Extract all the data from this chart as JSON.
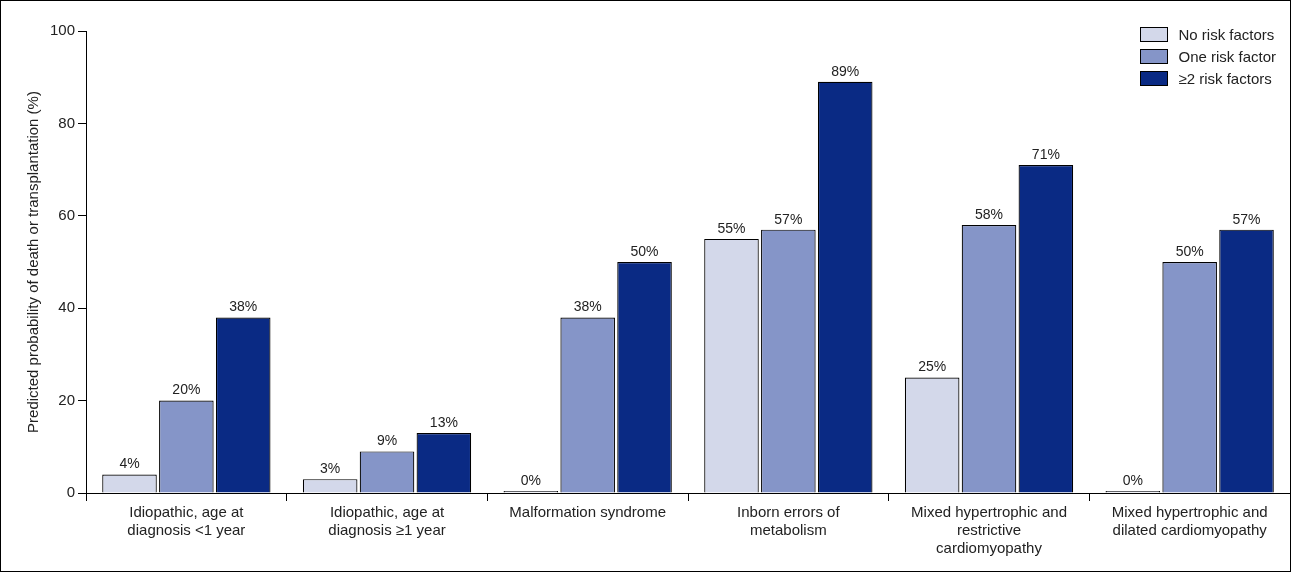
{
  "chart_data": {
    "type": "bar",
    "ylabel": "Predicted probability of death or transplantation (%)",
    "categories": [
      "Idiopathic, age at diagnosis <1 year",
      "Idiopathic, age at diagnosis ≥1 year",
      "Malformation syndrome",
      "Inborn errors of metabolism",
      "Mixed hypertrophic and restrictive cardiomyopathy",
      "Mixed hypertrophic and dilated cardiomyopathy"
    ],
    "series": [
      {
        "name": "No risk factors",
        "color": "#d3d8ea",
        "values": [
          4,
          3,
          0,
          55,
          25,
          0
        ],
        "value_labels": [
          "4%",
          "3%",
          "0%",
          "55%",
          "25%",
          "0%"
        ]
      },
      {
        "name": "One risk factor",
        "color": "#8595c8",
        "values": [
          20,
          9,
          38,
          57,
          58,
          50
        ],
        "value_labels": [
          "20%",
          "9%",
          "38%",
          "57%",
          "58%",
          "50%"
        ]
      },
      {
        "name": "≥2 risk factors",
        "color": "#0a2a84",
        "values": [
          38,
          13,
          50,
          89,
          71,
          57
        ],
        "value_labels": [
          "38%",
          "13%",
          "50%",
          "89%",
          "71%",
          "57%"
        ]
      }
    ],
    "ylim": [
      0,
      100
    ],
    "yticks": [
      0,
      20,
      40,
      60,
      80,
      100
    ],
    "grid": false,
    "legend": "top right"
  }
}
